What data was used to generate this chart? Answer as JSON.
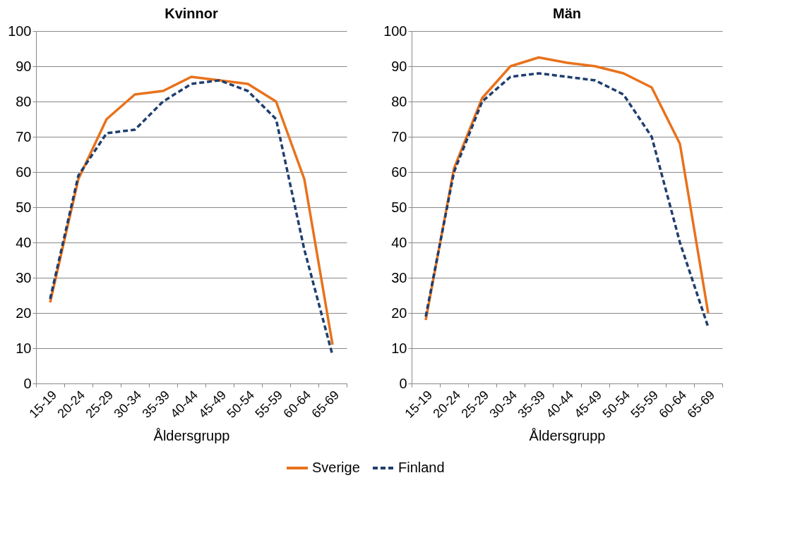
{
  "chart_data": [
    {
      "type": "line",
      "title": "Kvinnor",
      "xlabel": "Åldersgrupp",
      "categories": [
        "15-19",
        "20-24",
        "25-29",
        "30-34",
        "35-39",
        "40-44",
        "45-49",
        "50-54",
        "55-59",
        "60-64",
        "65-69"
      ],
      "ylim": [
        0,
        100
      ],
      "yticks": [
        0,
        10,
        20,
        30,
        40,
        50,
        60,
        70,
        80,
        90,
        100
      ],
      "grid": "y",
      "legend": "bottom",
      "series": [
        {
          "name": "Sverige",
          "color": "#e8721c",
          "line_style": "solid",
          "values": [
            23,
            58,
            75,
            82,
            83,
            87,
            86,
            85,
            80,
            58,
            11
          ]
        },
        {
          "name": "Finland",
          "color": "#1f3e6e",
          "line_style": "dashed",
          "values": [
            24,
            59,
            71,
            72,
            80,
            85,
            86,
            83,
            75,
            38,
            8
          ]
        }
      ]
    },
    {
      "type": "line",
      "title": "Män",
      "xlabel": "Åldersgrupp",
      "categories": [
        "15-19",
        "20-24",
        "25-29",
        "30-34",
        "35-39",
        "40-44",
        "45-49",
        "50-54",
        "55-59",
        "60-64",
        "65-69"
      ],
      "ylim": [
        0,
        100
      ],
      "yticks": [
        0,
        10,
        20,
        30,
        40,
        50,
        60,
        70,
        80,
        90,
        100
      ],
      "grid": "y",
      "legend": "bottom",
      "series": [
        {
          "name": "Sverige",
          "color": "#e8721c",
          "line_style": "solid",
          "values": [
            18,
            61,
            81,
            90,
            92.5,
            91,
            90,
            88,
            84,
            68,
            20
          ]
        },
        {
          "name": "Finland",
          "color": "#1f3e6e",
          "line_style": "dashed",
          "values": [
            19,
            60,
            80,
            87,
            88,
            87,
            86,
            82,
            70,
            40,
            16
          ]
        }
      ]
    }
  ]
}
